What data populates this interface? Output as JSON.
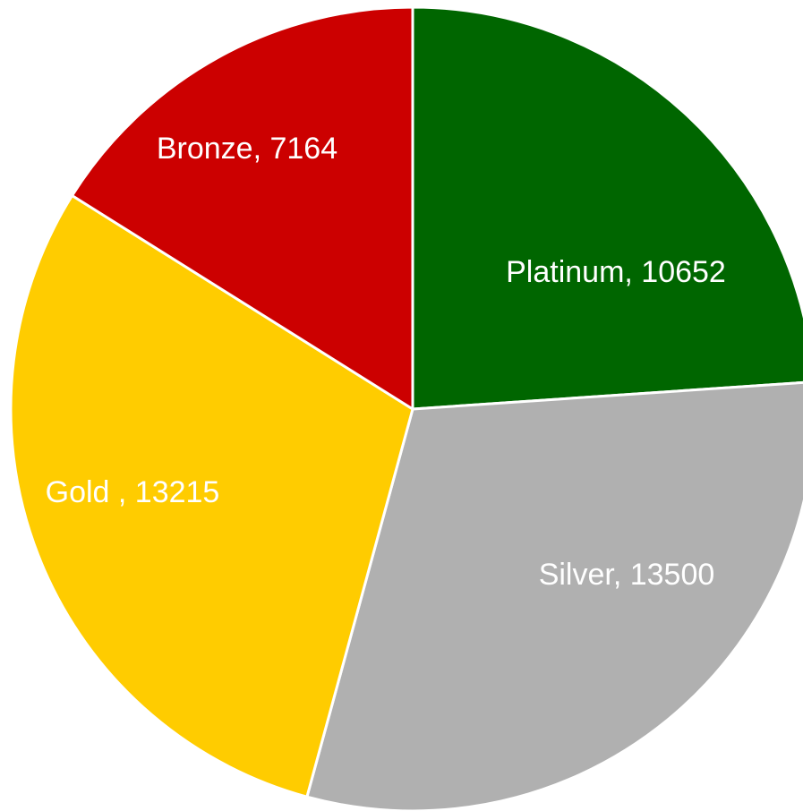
{
  "chart_data": {
    "type": "pie",
    "start_angle_deg": 0,
    "direction": "clockwise",
    "slices": [
      {
        "name": "Platinum",
        "value": 10652,
        "label": "Platinum, 10652",
        "color": "#006600"
      },
      {
        "name": "Silver",
        "value": 13500,
        "label": "Silver, 13500",
        "color": "#b0b0b0"
      },
      {
        "name": "Gold",
        "value": 13215,
        "label": "Gold , 13215",
        "color": "#ffcc00"
      },
      {
        "name": "Bronze",
        "value": 7164,
        "label": "Bronze, 7164",
        "color": "#cc0000"
      }
    ]
  }
}
